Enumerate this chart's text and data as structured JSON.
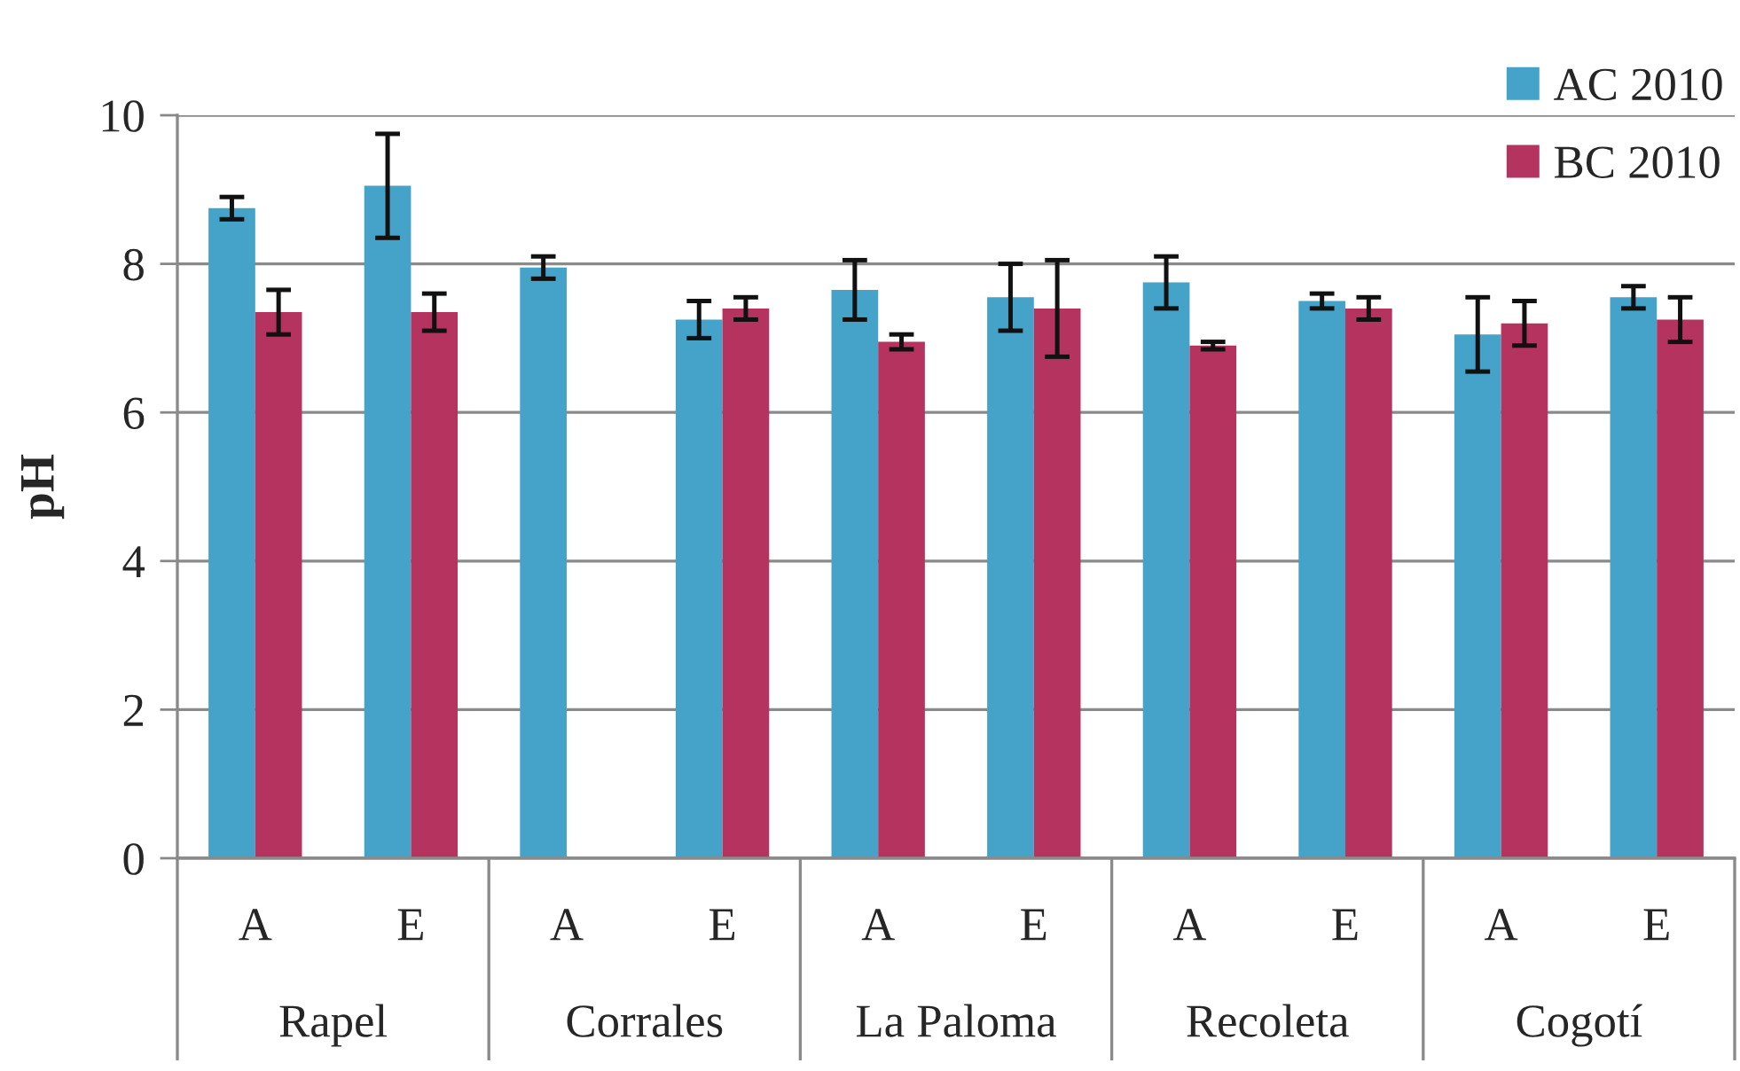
{
  "chart_data": {
    "type": "bar",
    "ylabel": "pH",
    "categories": [
      "A",
      "E",
      "A",
      "E",
      "A",
      "E",
      "A",
      "E",
      "A",
      "E"
    ],
    "series": [
      {
        "name": "AC 2010",
        "color": "#45a2c8",
        "values": [
          8.75,
          9.05,
          7.95,
          7.25,
          7.65,
          7.55,
          7.75,
          7.5,
          7.05,
          7.55
        ],
        "errors": [
          0.15,
          0.7,
          0.15,
          0.25,
          0.4,
          0.45,
          0.35,
          0.1,
          0.5,
          0.15
        ]
      },
      {
        "name": "BC 2010",
        "color": "#b5335f",
        "values": [
          7.35,
          7.35,
          null,
          7.4,
          6.95,
          7.4,
          6.9,
          7.4,
          7.2,
          7.25
        ],
        "errors": [
          0.3,
          0.25,
          null,
          0.15,
          0.1,
          0.65,
          0.05,
          0.15,
          0.3,
          0.3
        ]
      }
    ],
    "ylim": [
      0,
      10
    ],
    "yticks": [
      0,
      2,
      4,
      6,
      8,
      10
    ],
    "grid": "y",
    "legend": "top right",
    "annotations": [
      "Rapel",
      "Corrales",
      "La Paloma",
      "Recoleta",
      "Cogotí"
    ]
  }
}
